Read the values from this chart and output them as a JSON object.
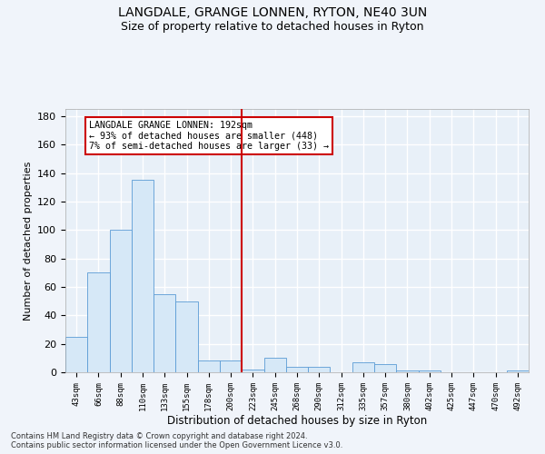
{
  "title1": "LANGDALE, GRANGE LONNEN, RYTON, NE40 3UN",
  "title2": "Size of property relative to detached houses in Ryton",
  "xlabel": "Distribution of detached houses by size in Ryton",
  "ylabel": "Number of detached properties",
  "categories": [
    "43sqm",
    "66sqm",
    "88sqm",
    "110sqm",
    "133sqm",
    "155sqm",
    "178sqm",
    "200sqm",
    "223sqm",
    "245sqm",
    "268sqm",
    "290sqm",
    "312sqm",
    "335sqm",
    "357sqm",
    "380sqm",
    "402sqm",
    "425sqm",
    "447sqm",
    "470sqm",
    "492sqm"
  ],
  "values": [
    25,
    70,
    100,
    135,
    55,
    50,
    8,
    8,
    2,
    10,
    4,
    4,
    0,
    7,
    6,
    1,
    1,
    0,
    0,
    0,
    1
  ],
  "bar_color": "#d6e8f7",
  "bar_edge_color": "#5b9bd5",
  "vline_x": 7.5,
  "vline_color": "#cc0000",
  "annotation_text": "LANGDALE GRANGE LONNEN: 192sqm\n← 93% of detached houses are smaller (448)\n7% of semi-detached houses are larger (33) →",
  "annotation_box_color": "#ffffff",
  "annotation_box_edge": "#cc0000",
  "ylim": [
    0,
    185
  ],
  "yticks": [
    0,
    20,
    40,
    60,
    80,
    100,
    120,
    140,
    160,
    180
  ],
  "footer": "Contains HM Land Registry data © Crown copyright and database right 2024.\nContains public sector information licensed under the Open Government Licence v3.0.",
  "bg_color": "#f0f4fa",
  "plot_bg_color": "#e8f0f8",
  "grid_color": "#ffffff",
  "title1_fontsize": 10,
  "title2_fontsize": 9
}
